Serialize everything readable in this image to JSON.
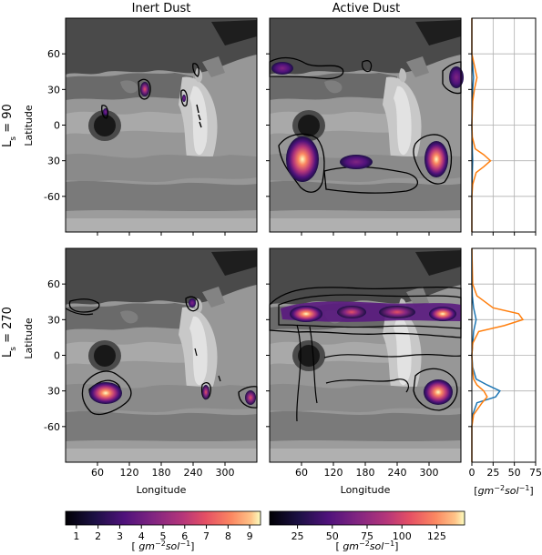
{
  "columns": {
    "inert_title": "Inert Dust",
    "active_title": "Active Dust"
  },
  "rows": {
    "ls90_label": "L_s = 90",
    "ls270_label": "L_s = 270"
  },
  "axes": {
    "ylabel": "Latitude",
    "xlabel": "Longitude",
    "lat_ticks": [
      "60",
      "30",
      "0",
      "30",
      "-60"
    ],
    "lon_ticks": [
      "60",
      "120",
      "180",
      "240",
      "300"
    ]
  },
  "colorbars": {
    "inert": {
      "ticks": [
        "1",
        "2",
        "3",
        "4",
        "5",
        "6",
        "7",
        "8",
        "9"
      ],
      "label": "[ gm⁻²sol⁻¹]"
    },
    "active": {
      "ticks": [
        "25",
        "50",
        "75",
        "100",
        "125"
      ],
      "label": "[ gm⁻²sol⁻¹]"
    }
  },
  "chart_data": [
    {
      "type": "heatmap",
      "panel": "ls90-inert",
      "title": "Inert Dust",
      "ylabel": "Latitude",
      "xlim": [
        0,
        360
      ],
      "ylim": [
        -90,
        90
      ],
      "hotspots": [
        {
          "lon": 145,
          "lat": 30,
          "value": 4
        },
        {
          "lon": 205,
          "lat": 18,
          "value": 2
        }
      ],
      "cmap": "magma",
      "clim": [
        0.5,
        9.5
      ]
    },
    {
      "type": "heatmap",
      "panel": "ls90-active",
      "title": "Active Dust",
      "xlim": [
        0,
        360
      ],
      "ylim": [
        -90,
        90
      ],
      "hotspots": [
        {
          "lon": 55,
          "lat": -35,
          "value": 110
        },
        {
          "lon": 335,
          "lat": -33,
          "value": 145
        },
        {
          "lon": 135,
          "lat": -35,
          "value": 50
        },
        {
          "lon": 350,
          "lat": 45,
          "value": 50
        },
        {
          "lon": 20,
          "lat": 43,
          "value": 40
        }
      ],
      "cmap": "magma",
      "clim": [
        5,
        145
      ]
    },
    {
      "type": "line",
      "panel": "ls90-profile",
      "xlabel": "",
      "xlim": [
        0,
        75
      ],
      "series": [
        {
          "color": "#1f77b4",
          "lat": [
            -90,
            -60,
            -40,
            -30,
            -20,
            0,
            20,
            30,
            40,
            50,
            60,
            90
          ],
          "values": [
            0,
            0,
            0.5,
            1,
            0.5,
            0,
            0.5,
            1,
            2,
            1,
            0,
            0
          ]
        },
        {
          "color": "#ff7f0e",
          "lat": [
            -90,
            -60,
            -50,
            -40,
            -35,
            -30,
            -25,
            -20,
            -10,
            0,
            20,
            30,
            40,
            50,
            60,
            90
          ],
          "values": [
            0,
            0,
            1,
            5,
            14,
            22,
            14,
            4,
            0.5,
            0,
            1,
            3,
            6,
            3,
            0,
            0
          ]
        }
      ]
    },
    {
      "type": "heatmap",
      "panel": "ls270-inert",
      "xlabel": "Longitude",
      "ylabel": "Latitude",
      "xlim": [
        0,
        360
      ],
      "ylim": [
        -90,
        90
      ],
      "hotspots": [
        {
          "lon": 75,
          "lat": -37,
          "value": 9
        },
        {
          "lon": 350,
          "lat": -37,
          "value": 5
        },
        {
          "lon": 240,
          "lat": -37,
          "value": 4
        },
        {
          "lon": 210,
          "lat": 40,
          "value": 3
        }
      ],
      "cmap": "magma",
      "clim": [
        0.5,
        9.5
      ]
    },
    {
      "type": "heatmap",
      "panel": "ls270-active",
      "xlabel": "Longitude",
      "xlim": [
        0,
        360
      ],
      "ylim": [
        -90,
        90
      ],
      "hotspots": [
        {
          "lon": 60,
          "lat": 33,
          "value": 145
        },
        {
          "lon": 120,
          "lat": 35,
          "value": 110
        },
        {
          "lon": 180,
          "lat": 35,
          "value": 110
        },
        {
          "lon": 240,
          "lat": 34,
          "value": 100
        },
        {
          "lon": 310,
          "lat": 33,
          "value": 110
        },
        {
          "lon": 340,
          "lat": 35,
          "value": 90
        },
        {
          "lon": 335,
          "lat": -35,
          "value": 110
        }
      ],
      "cmap": "magma",
      "clim": [
        5,
        145
      ]
    },
    {
      "type": "line",
      "panel": "ls270-profile",
      "xlabel": "[gm⁻²sol⁻¹]",
      "xlim": [
        0,
        75
      ],
      "xticks": [
        0,
        25,
        50,
        75
      ],
      "series": [
        {
          "color": "#1f77b4",
          "lat": [
            -90,
            -60,
            -50,
            -40,
            -35,
            -30,
            -25,
            -20,
            -10,
            0,
            20,
            30,
            40,
            50,
            60,
            90
          ],
          "values": [
            0,
            0,
            1,
            6,
            28,
            33,
            18,
            5,
            1,
            0,
            2,
            5,
            2,
            0.5,
            0,
            0
          ]
        },
        {
          "color": "#ff7f0e",
          "lat": [
            -90,
            -60,
            -50,
            -40,
            -35,
            -30,
            -25,
            -20,
            -10,
            0,
            10,
            20,
            25,
            30,
            35,
            40,
            50,
            60,
            90
          ],
          "values": [
            0,
            0,
            2,
            12,
            18,
            14,
            6,
            2,
            0.5,
            0,
            1,
            8,
            38,
            60,
            55,
            25,
            6,
            1,
            0
          ]
        }
      ]
    }
  ]
}
